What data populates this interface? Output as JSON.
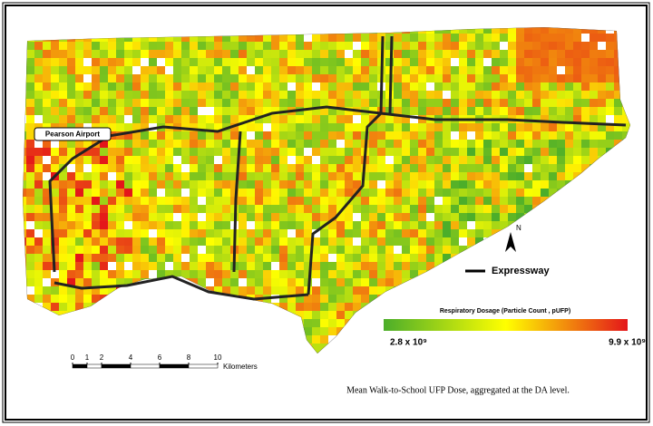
{
  "labels": {
    "airport": "Pearson Airport",
    "expressway": "Expressway",
    "north": "N"
  },
  "legend": {
    "title": "Respiratory Dosage (Particle Count , pUFP)",
    "min": {
      "value": 2800000000,
      "label": "2.8 x 10⁹"
    },
    "max": {
      "value": 9900000000,
      "label": "9.9 x 10⁹"
    }
  },
  "scale_bar": {
    "ticks": [
      0,
      1,
      2,
      4,
      6,
      8,
      10
    ],
    "unit": "Kilometers"
  },
  "caption": "Mean Walk-to-School UFP Dose, aggregated at the DA level."
}
